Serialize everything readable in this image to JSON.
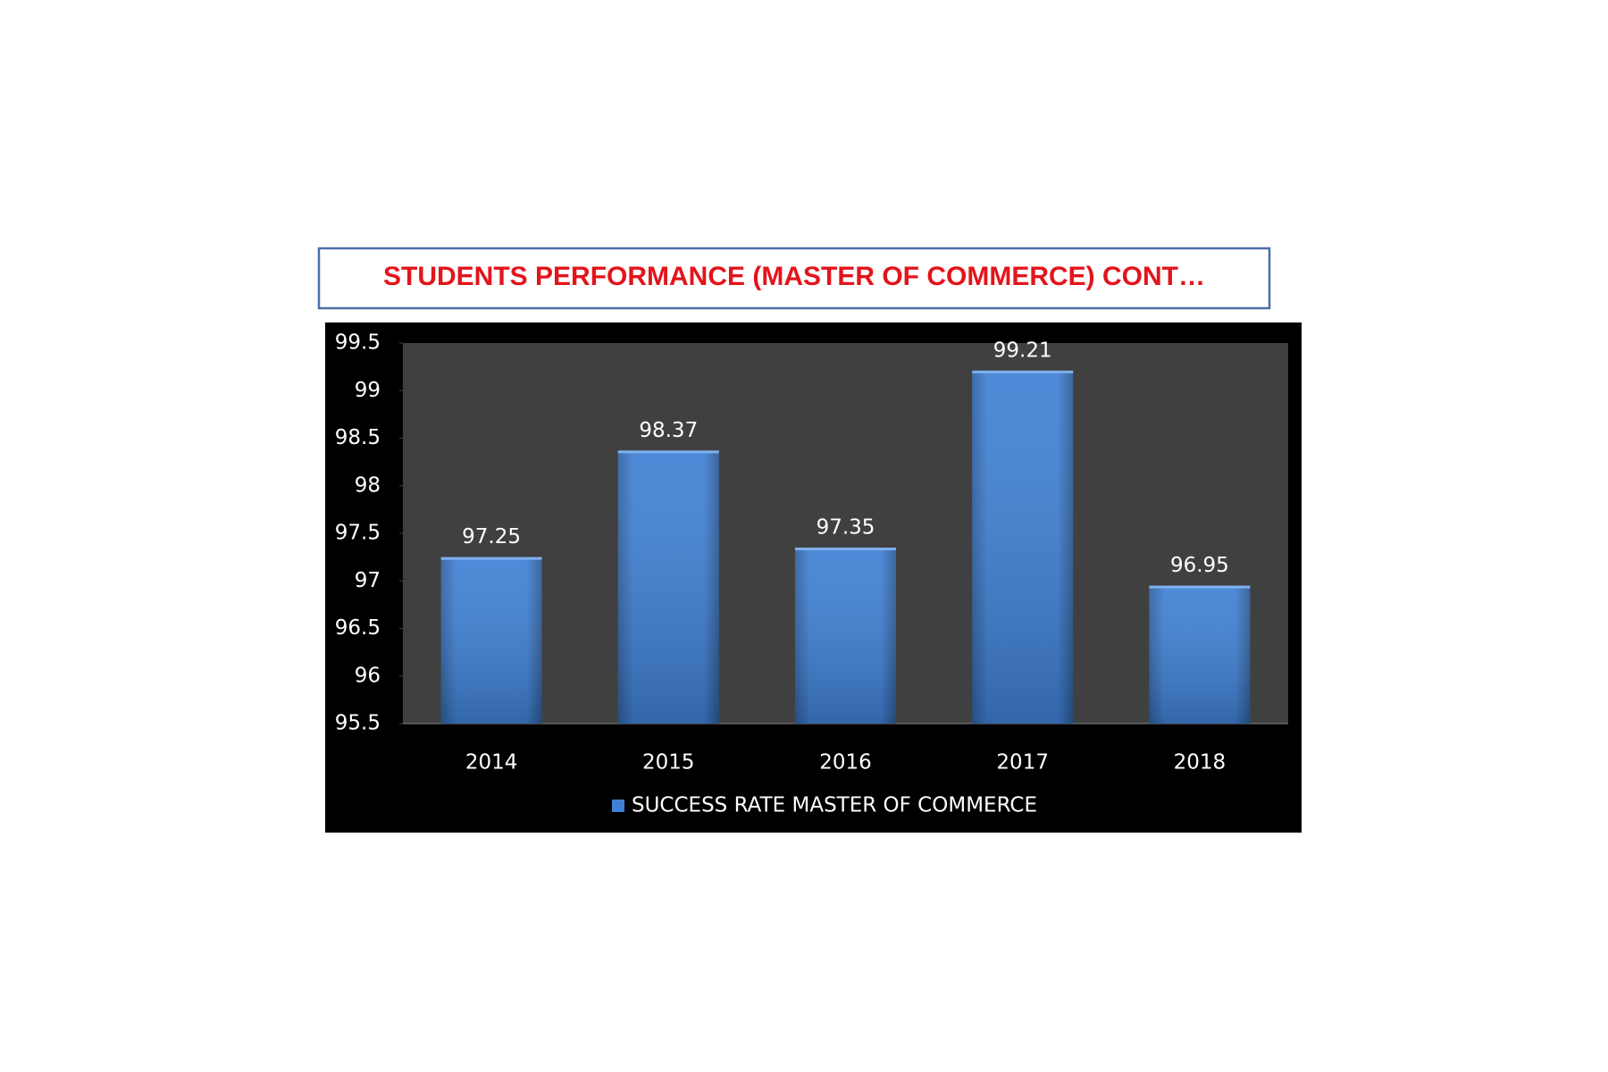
{
  "chart_data": {
    "type": "bar",
    "title": "STUDENTS PERFORMANCE (MASTER OF COMMERCE) CONT…",
    "categories": [
      "2014",
      "2015",
      "2016",
      "2017",
      "2018"
    ],
    "series": [
      {
        "name": "SUCCESS RATE MASTER OF COMMERCE",
        "color": "#3f80d4",
        "values": [
          97.25,
          98.37,
          97.35,
          99.21,
          96.95
        ]
      }
    ],
    "ylim": [
      95.5,
      99.5
    ],
    "yticks": [
      95.5,
      96,
      96.5,
      97,
      97.5,
      98,
      98.5,
      99,
      99.5
    ],
    "grid": false,
    "legend": "bottom",
    "data_labels": true
  }
}
